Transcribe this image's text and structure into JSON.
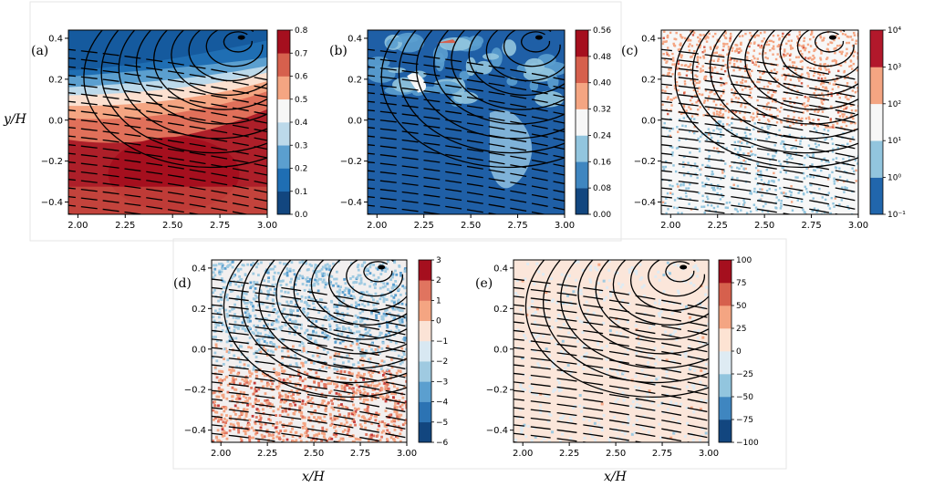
{
  "figure": {
    "xlabel": "x/H",
    "ylabel": "y/H"
  },
  "chart_data": [
    {
      "type": "heatmap",
      "panel_label": "(a)",
      "x_ticks": [
        "2.00",
        "2.25",
        "2.50",
        "2.75",
        "3.00"
      ],
      "y_ticks": [
        "0.4",
        "0.2",
        "0.0",
        "−0.2",
        "−0.4"
      ],
      "xlim": [
        1.95,
        3.0
      ],
      "ylim": [
        -0.46,
        0.44
      ],
      "colorbar_ticks": [
        "0.0",
        "0.1",
        "0.2",
        "0.3",
        "0.4",
        "0.5",
        "0.6",
        "0.7",
        "0.8"
      ],
      "colorbar_levels": 8,
      "colormap": "RdBu_r",
      "pattern": "blue top, red bottom core"
    },
    {
      "type": "heatmap",
      "panel_label": "(b)",
      "x_ticks": [
        "2.00",
        "2.25",
        "2.50",
        "2.75",
        "3.00"
      ],
      "y_ticks": [
        "0.4",
        "0.2",
        "0.0",
        "−0.2",
        "−0.4"
      ],
      "xlim": [
        1.95,
        3.0
      ],
      "ylim": [
        -0.46,
        0.44
      ],
      "colorbar_ticks": [
        "0.00",
        "0.08",
        "0.16",
        "0.24",
        "0.32",
        "0.40",
        "0.48",
        "0.56"
      ],
      "colorbar_levels": 7,
      "colormap": "RdBu_r",
      "pattern": "mostly dark blue with light blue patches"
    },
    {
      "type": "heatmap",
      "panel_label": "(c)",
      "x_ticks": [
        "2.00",
        "2.25",
        "2.50",
        "2.75",
        "3.00"
      ],
      "y_ticks": [
        "0.4",
        "0.2",
        "0.0",
        "−0.2",
        "−0.4"
      ],
      "xlim": [
        1.95,
        3.0
      ],
      "ylim": [
        -0.46,
        0.44
      ],
      "colorbar_ticks": [
        "10⁻¹",
        "10⁰",
        "10¹",
        "10²",
        "10³",
        "10⁴"
      ],
      "colorbar_levels": 5,
      "colormap": "RdBu_r log",
      "pattern": "orange top, speckled light blue bottom"
    },
    {
      "type": "heatmap",
      "panel_label": "(d)",
      "x_ticks": [
        "2.00",
        "2.25",
        "2.50",
        "2.75",
        "3.00"
      ],
      "y_ticks": [
        "0.4",
        "0.2",
        "0.0",
        "−0.2",
        "−0.4"
      ],
      "xlim": [
        1.95,
        3.0
      ],
      "ylim": [
        -0.46,
        0.44
      ],
      "colorbar_ticks": [
        "3",
        "2",
        "1",
        "0",
        "−1",
        "−2",
        "−3",
        "−4",
        "−5",
        "−6"
      ],
      "colorbar_levels": 9,
      "colormap": "RdBu_r",
      "pattern": "light blue top, red bottom"
    },
    {
      "type": "heatmap",
      "panel_label": "(e)",
      "x_ticks": [
        "2.00",
        "2.25",
        "2.50",
        "2.75",
        "3.00"
      ],
      "y_ticks": [
        "0.4",
        "0.2",
        "0.0",
        "−0.2",
        "−0.4"
      ],
      "xlim": [
        1.95,
        3.0
      ],
      "ylim": [
        -0.46,
        0.44
      ],
      "colorbar_ticks": [
        "100",
        "75",
        "50",
        "25",
        "0",
        "−25",
        "−50",
        "−75",
        "−100"
      ],
      "colorbar_levels": 8,
      "colormap": "RdBu_r",
      "pattern": "near-white pale peach and pale blue"
    }
  ],
  "colors": {
    "darkred": "#a50f1e",
    "red": "#d6604d",
    "salmon": "#f4a582",
    "peach": "#fddbc7",
    "white": "#f7f7f7",
    "paleblue": "#d1e5f0",
    "lightblue": "#92c5de",
    "midblue": "#4393c3",
    "darkblue": "#1a5fa8",
    "navy": "#12467f"
  }
}
